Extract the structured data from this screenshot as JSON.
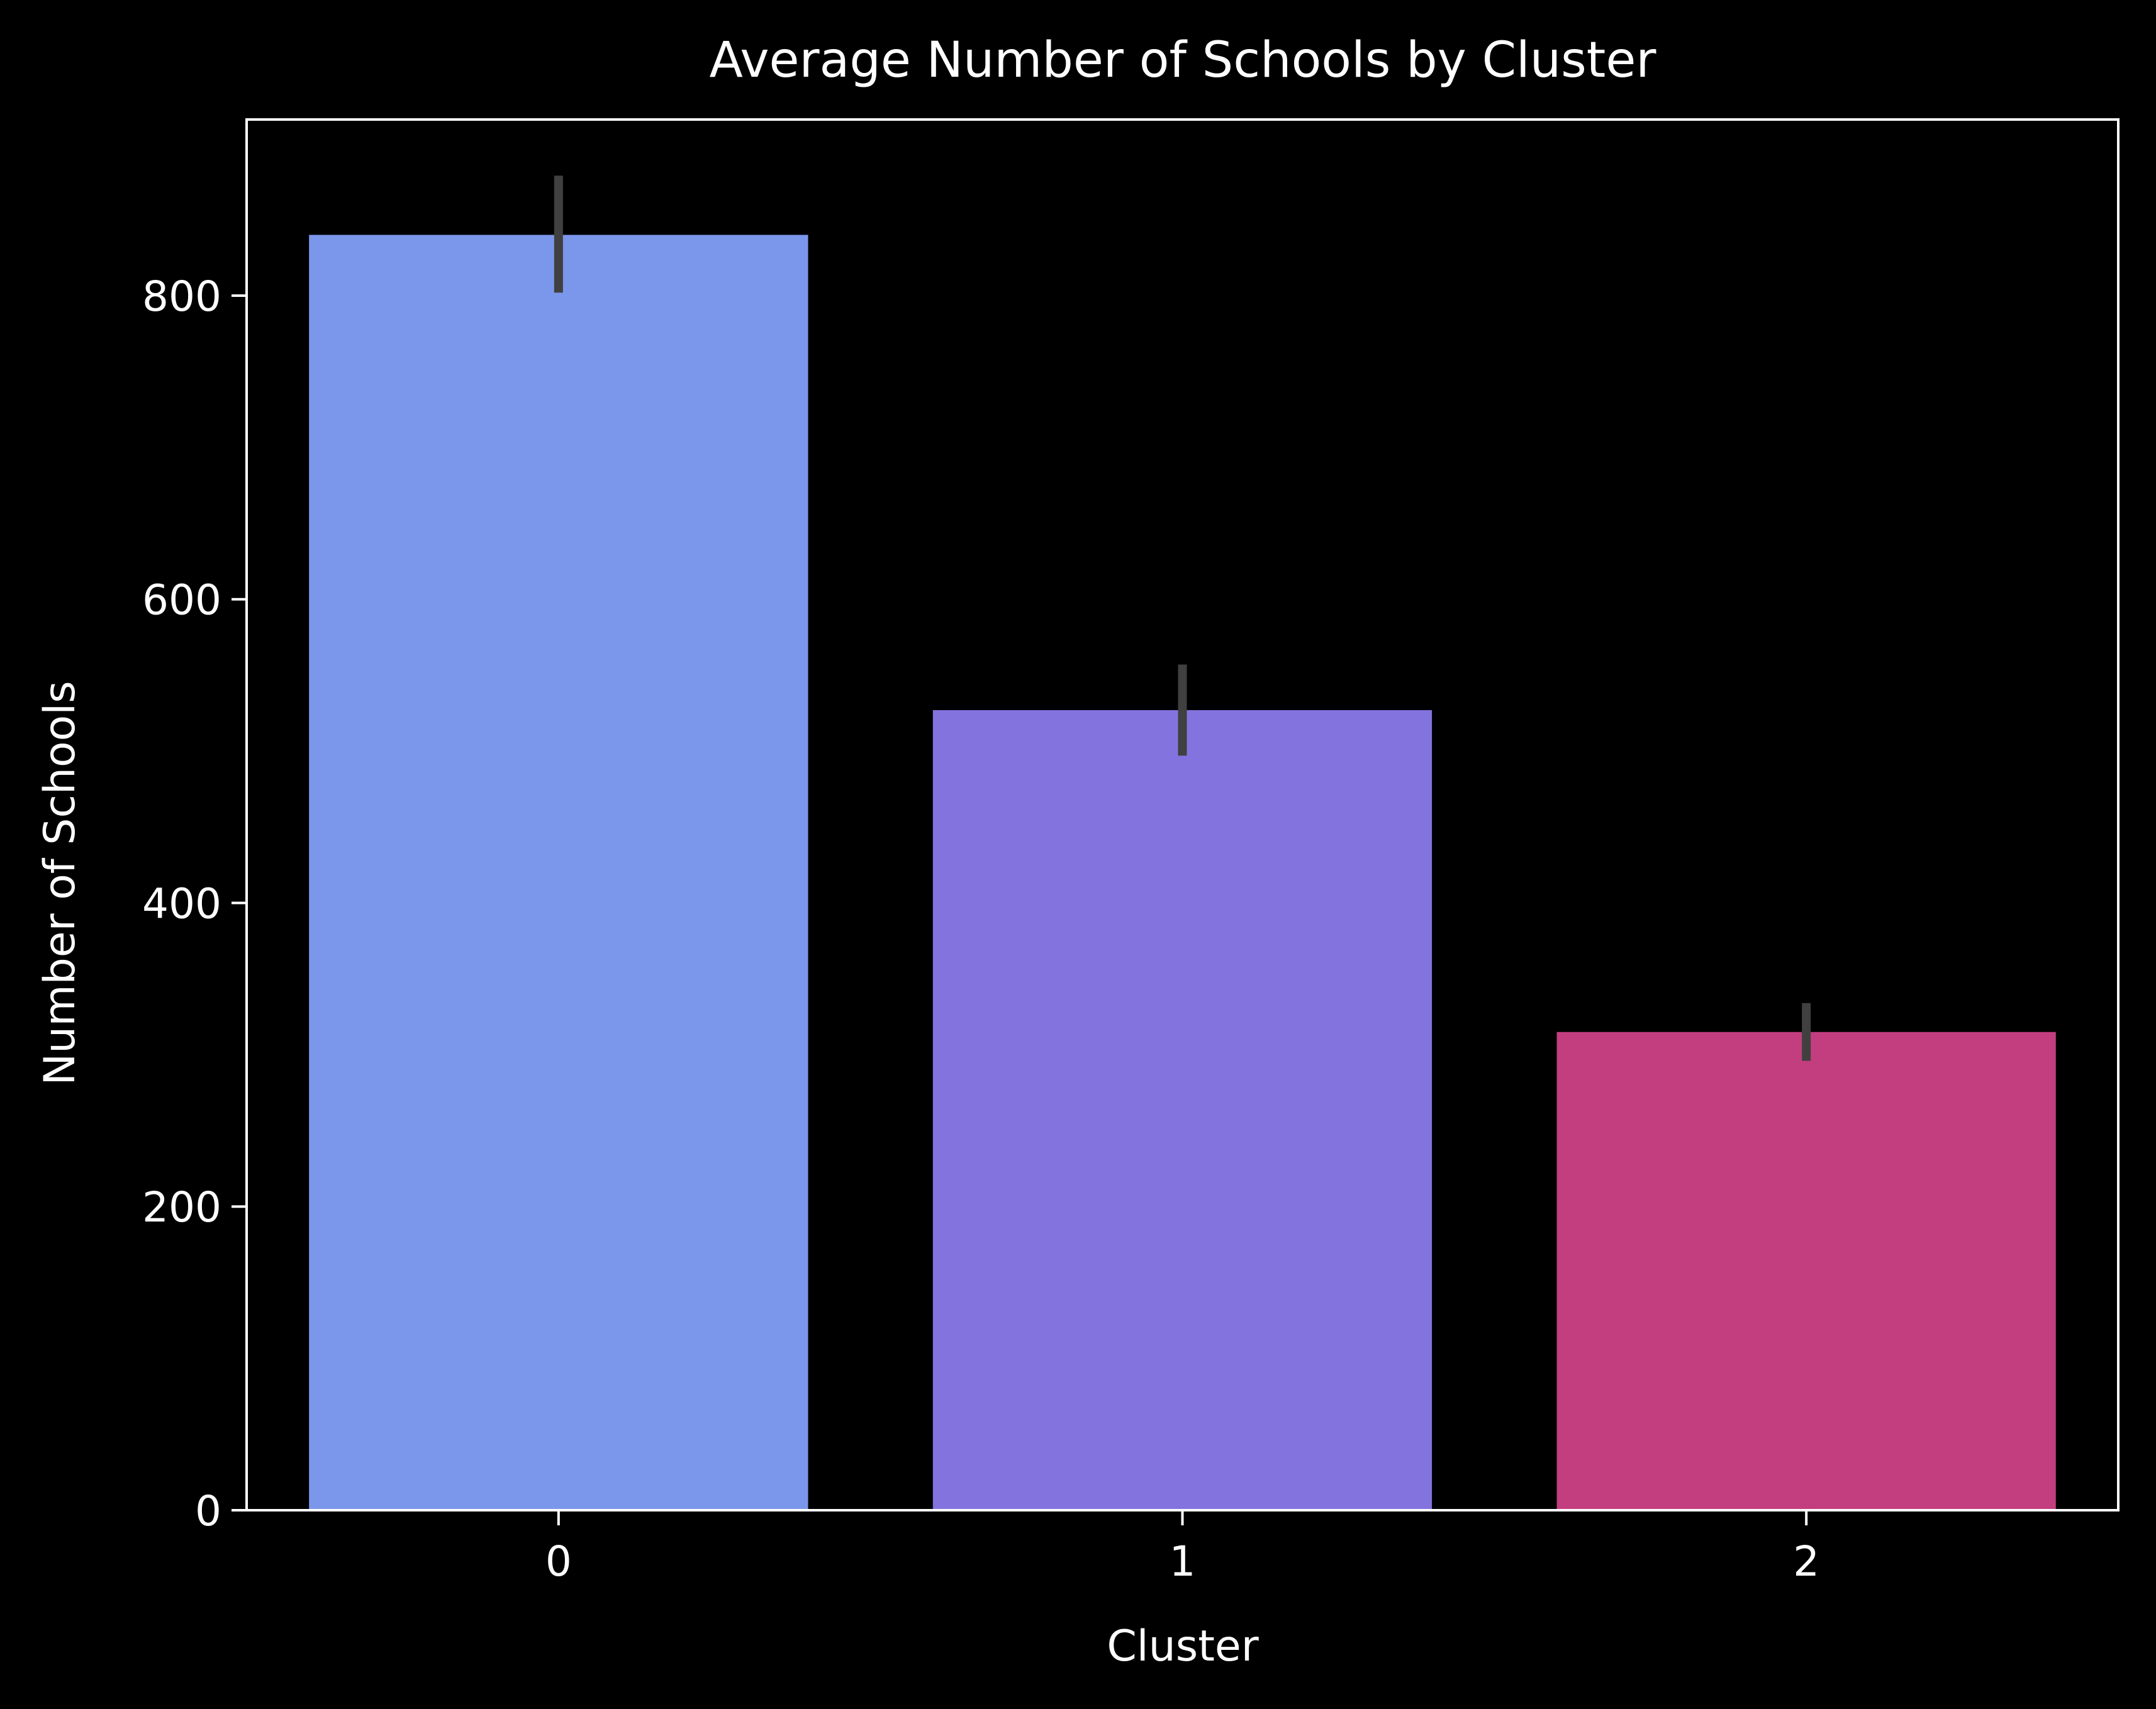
{
  "colors": {
    "background": "#000000",
    "axes": "#ffffff",
    "text": "#ffffff",
    "error_bar": "#404040"
  },
  "chart_data": {
    "type": "bar",
    "title": "Average Number of Schools by Cluster",
    "xlabel": "Cluster",
    "ylabel": "Number of Schools",
    "categories": [
      "0",
      "1",
      "2"
    ],
    "values": [
      840,
      527,
      315
    ],
    "error_bars": [
      {
        "low": 802,
        "high": 879
      },
      {
        "low": 497,
        "high": 557
      },
      {
        "low": 296,
        "high": 334
      }
    ],
    "bar_colors": [
      "#7b97eb",
      "#8373df",
      "#c33e7e"
    ],
    "ylim": [
      0,
      916
    ],
    "yticks": [
      0,
      200,
      400,
      600,
      800
    ],
    "grid": false,
    "legend": "none"
  }
}
